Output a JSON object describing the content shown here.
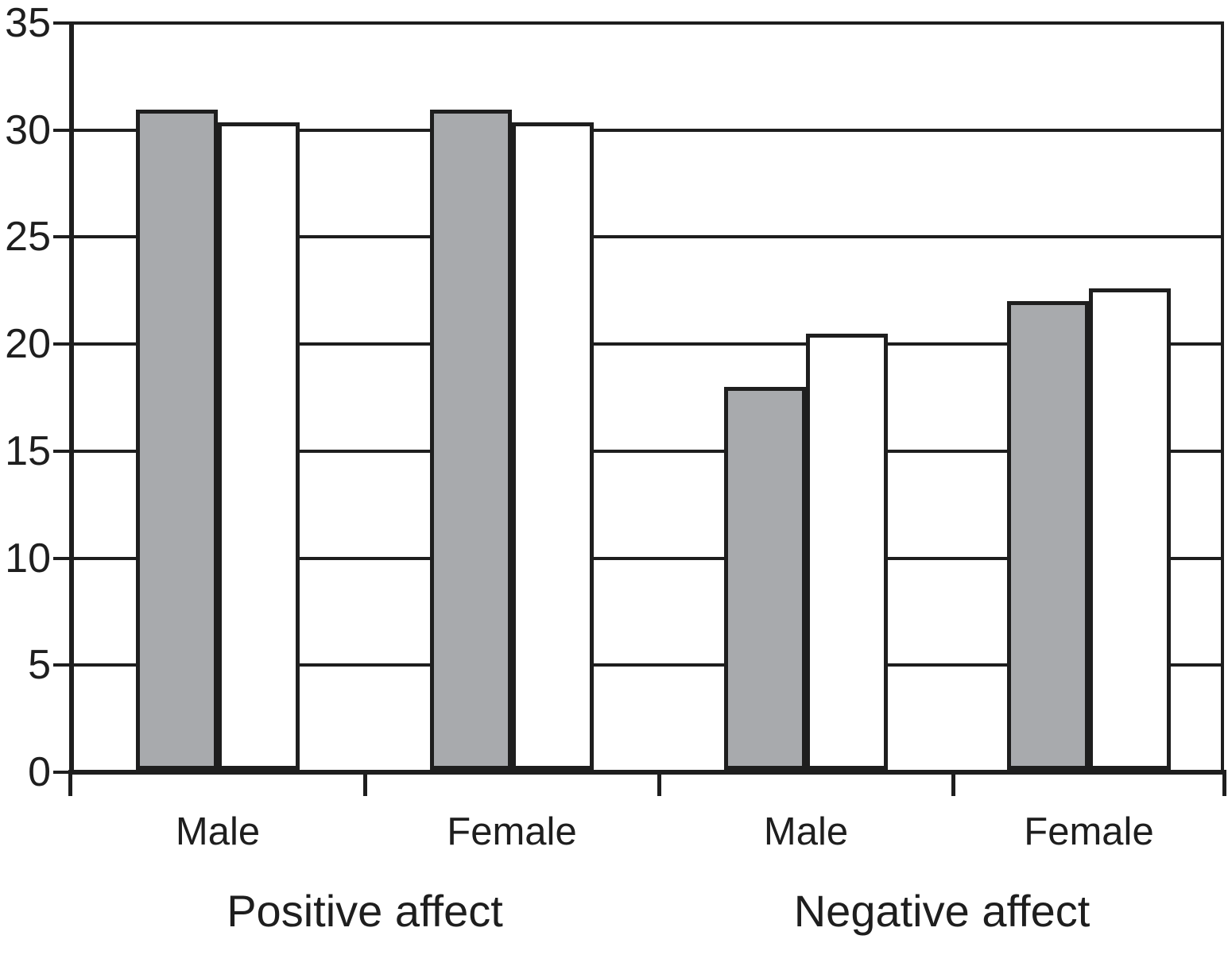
{
  "figure": {
    "background": "#ffffff",
    "ink_color": "#1e1e1e"
  },
  "chart_data": {
    "type": "bar",
    "title": "",
    "xlabel": "",
    "ylabel": "",
    "ylim": [
      0,
      35
    ],
    "ytick_step": 5,
    "ytick_labels": [
      "0",
      "5",
      "10",
      "15",
      "20",
      "25",
      "30",
      "35"
    ],
    "grid": "horizontal-on",
    "legend": "none",
    "categories": [
      "Male",
      "Female",
      "Male",
      "Female"
    ],
    "group_labels": [
      "Positive affect",
      "Negative affect"
    ],
    "categories_per_group": 2,
    "series": [
      {
        "name": "gray-bars",
        "fill": "#a8aaad",
        "values": [
          31.0,
          31.0,
          18.0,
          22.0
        ]
      },
      {
        "name": "white-bars",
        "fill": "#ffffff",
        "values": [
          30.4,
          30.4,
          20.5,
          22.6
        ]
      }
    ]
  }
}
